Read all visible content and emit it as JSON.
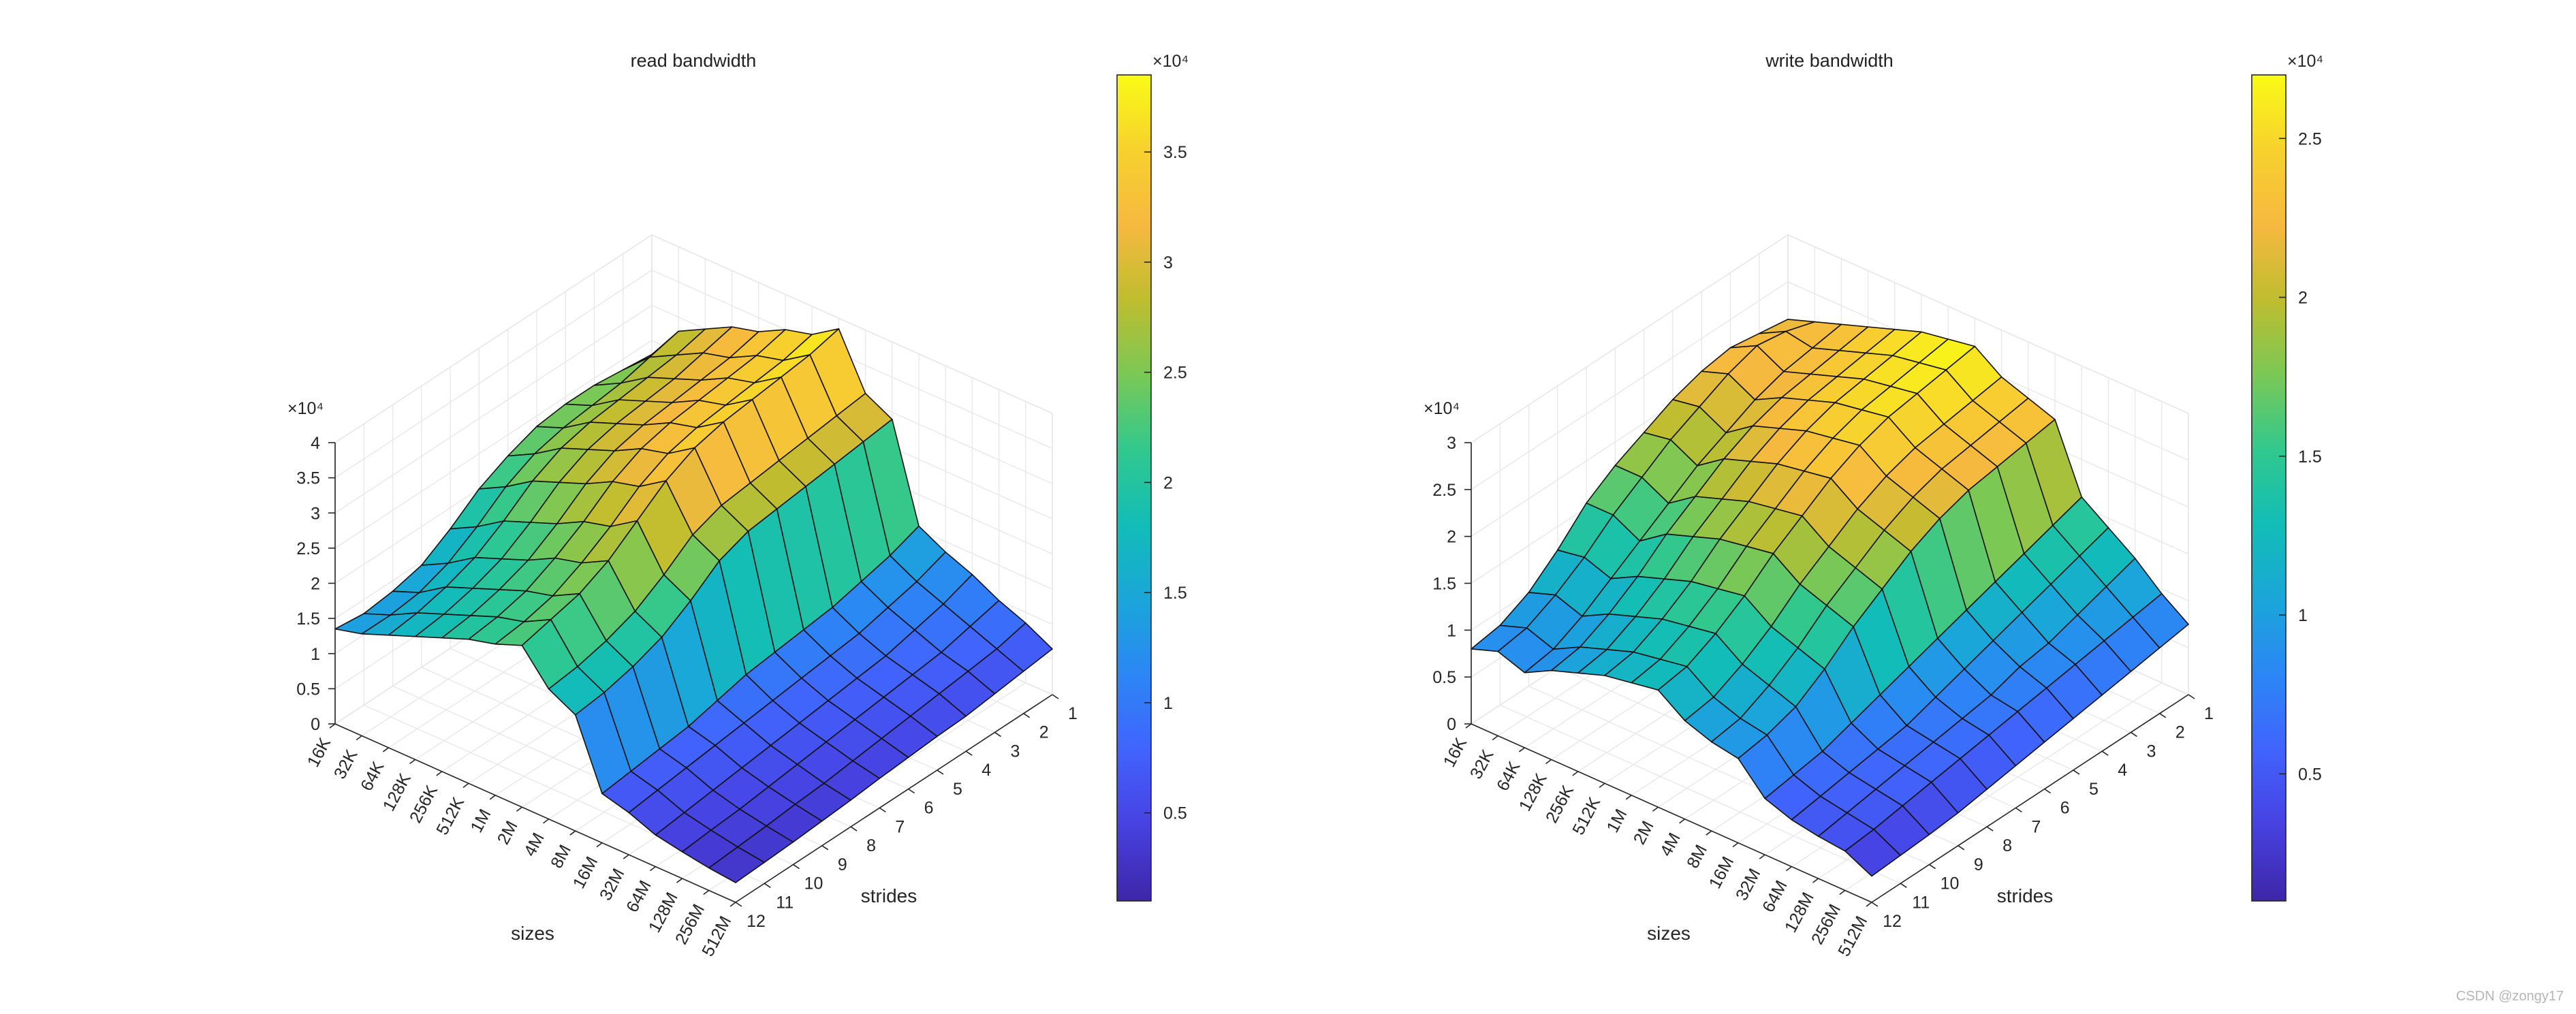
{
  "figure": {
    "watermark": "CSDN @zongy17"
  },
  "colormap": [
    "#3e26a8",
    "#4741e0",
    "#4163fd",
    "#2c86f5",
    "#1aa6d9",
    "#12bdb7",
    "#30c88f",
    "#7ac856",
    "#bfbd2f",
    "#f6b93f",
    "#f7d12e",
    "#f9fb15"
  ],
  "chart_data": [
    {
      "type": "surface",
      "title": "read bandwidth",
      "xlabel": "strides",
      "ylabel": "sizes",
      "zlabel": "",
      "stride_values": [
        1,
        2,
        3,
        4,
        5,
        6,
        7,
        8,
        9,
        10,
        11,
        12
      ],
      "stride_tick_labels": [
        "1",
        "2",
        "3",
        "4",
        "5",
        "6",
        "7",
        "8",
        "9",
        "10",
        "11",
        "12"
      ],
      "size_tick_labels": [
        "16K",
        "32K",
        "64K",
        "128K",
        "256K",
        "512K",
        "1M",
        "2M",
        "4M",
        "8M",
        "16M",
        "32M",
        "64M",
        "128M",
        "256M",
        "512M"
      ],
      "z_exponent_label": "×10⁴",
      "z_tick_values": [
        0,
        5000,
        10000,
        15000,
        20000,
        25000,
        30000,
        35000,
        40000
      ],
      "z_tick_labels": [
        "0",
        "0.5",
        "1",
        "1.5",
        "2",
        "2.5",
        "3",
        "3.5",
        "4"
      ],
      "zlim": [
        0,
        40000
      ],
      "colorbar": {
        "clim": [
          1000,
          38500
        ],
        "ticks": [
          5000,
          10000,
          15000,
          20000,
          25000,
          30000,
          35000
        ],
        "tick_labels": [
          "0.5",
          "1",
          "1.5",
          "2",
          "2.5",
          "3",
          "3.5"
        ],
        "exponent_label": "×10⁴"
      },
      "grid": true,
      "z_rows_by_stride": [
        [
          23000,
          28000,
          30000,
          32000,
          33000,
          35000,
          36000,
          38500,
          31000,
          29000,
          15500,
          13500,
          12000,
          10000,
          8500,
          6500
        ],
        [
          23500,
          27000,
          29000,
          31000,
          32000,
          34000,
          35000,
          37500,
          30500,
          28500,
          14000,
          12000,
          10500,
          9000,
          7500,
          6000
        ],
        [
          24000,
          26000,
          28500,
          30000,
          31500,
          33500,
          34500,
          37000,
          30000,
          28000,
          13000,
          11000,
          9500,
          8000,
          7000,
          5500
        ],
        [
          24000,
          25500,
          28000,
          29500,
          31000,
          33000,
          34000,
          36500,
          29500,
          27500,
          12000,
          10000,
          8500,
          7500,
          6500,
          5000
        ],
        [
          23500,
          25000,
          27500,
          29000,
          30500,
          32500,
          33500,
          36000,
          29000,
          27000,
          11500,
          9500,
          8000,
          7000,
          6000,
          4800
        ],
        [
          22000,
          24000,
          26500,
          28000,
          29500,
          31500,
          32500,
          35000,
          28500,
          26500,
          11000,
          9000,
          7500,
          6500,
          5500,
          4500
        ],
        [
          20000,
          22000,
          24500,
          26000,
          27500,
          29500,
          30500,
          33000,
          27000,
          25000,
          10500,
          8500,
          7000,
          6000,
          5000,
          4200
        ],
        [
          17000,
          19000,
          21500,
          23000,
          24500,
          26500,
          27500,
          30000,
          24000,
          22000,
          9500,
          8000,
          6500,
          5500,
          4500,
          3800
        ],
        [
          14500,
          16500,
          19000,
          20500,
          22000,
          24000,
          25000,
          27000,
          21500,
          19500,
          8500,
          7500,
          6000,
          5000,
          4200,
          3500
        ],
        [
          13500,
          15000,
          17500,
          19000,
          20500,
          22000,
          23000,
          25000,
          20000,
          18000,
          8000,
          7000,
          5500,
          4500,
          3800,
          3200
        ],
        [
          13000,
          14500,
          16500,
          18000,
          19500,
          21000,
          22000,
          24000,
          19000,
          17000,
          7500,
          6500,
          5000,
          4200,
          3500,
          3000
        ],
        [
          13500,
          14500,
          16000,
          17500,
          19000,
          20500,
          21500,
          23000,
          18500,
          16500,
          7000,
          6000,
          4500,
          3800,
          3200,
          2800
        ]
      ]
    },
    {
      "type": "surface",
      "title": "write bandwidth",
      "xlabel": "strides",
      "ylabel": "sizes",
      "zlabel": "",
      "stride_values": [
        1,
        2,
        3,
        4,
        5,
        6,
        7,
        8,
        9,
        10,
        11,
        12
      ],
      "stride_tick_labels": [
        "1",
        "2",
        "3",
        "4",
        "5",
        "6",
        "7",
        "8",
        "9",
        "10",
        "11",
        "12"
      ],
      "size_tick_labels": [
        "16K",
        "32K",
        "64K",
        "128K",
        "256K",
        "512K",
        "1M",
        "2M",
        "4M",
        "8M",
        "16M",
        "32M",
        "64M",
        "128M",
        "256M",
        "512M"
      ],
      "z_exponent_label": "×10⁴",
      "z_tick_values": [
        0,
        5000,
        10000,
        15000,
        20000,
        25000,
        30000
      ],
      "z_tick_labels": [
        "0",
        "0.5",
        "1",
        "1.5",
        "2",
        "2.5",
        "3"
      ],
      "zlim": [
        0,
        30000
      ],
      "colorbar": {
        "clim": [
          1000,
          27000
        ],
        "ticks": [
          5000,
          10000,
          15000,
          20000,
          25000
        ],
        "tick_labels": [
          "0.5",
          "1",
          "1.5",
          "2",
          "2.5"
        ],
        "exponent_label": "×10⁴"
      },
      "grid": true,
      "z_rows_by_stride": [
        [
          21000,
          22000,
          23000,
          24000,
          25000,
          26000,
          26500,
          27000,
          25000,
          24000,
          23000,
          16000,
          14000,
          12000,
          9500,
          7500
        ],
        [
          21500,
          23000,
          22500,
          23500,
          24500,
          25500,
          26000,
          26500,
          24500,
          23500,
          22500,
          15000,
          13000,
          11000,
          9000,
          7000
        ],
        [
          22000,
          23500,
          22000,
          23000,
          24000,
          25000,
          25500,
          26000,
          24000,
          23000,
          22000,
          14000,
          12000,
          10000,
          8500,
          6500
        ],
        [
          21500,
          22500,
          21000,
          22500,
          23500,
          24500,
          25000,
          25500,
          23500,
          22500,
          21500,
          13000,
          11000,
          9000,
          8000,
          6000
        ],
        [
          20500,
          21000,
          19500,
          21500,
          22500,
          23500,
          24000,
          24500,
          22500,
          21500,
          20500,
          12000,
          10000,
          8500,
          7500,
          5500
        ],
        [
          19000,
          19500,
          18000,
          20000,
          21000,
          22000,
          22500,
          23000,
          21000,
          20000,
          19000,
          11000,
          9000,
          7500,
          7000,
          5000
        ],
        [
          17500,
          17500,
          16000,
          18000,
          19000,
          20000,
          20500,
          21000,
          19000,
          18000,
          17000,
          10000,
          8000,
          7000,
          6500,
          4500
        ],
        [
          15500,
          15500,
          14000,
          16000,
          17000,
          18000,
          18500,
          19000,
          17000,
          16000,
          15000,
          9000,
          7000,
          6500,
          6000,
          4000
        ],
        [
          12500,
          13000,
          12000,
          13500,
          14500,
          15500,
          16000,
          16500,
          14500,
          13500,
          12500,
          8000,
          6500,
          6000,
          5500,
          3500
        ],
        [
          10000,
          11000,
          10000,
          11500,
          12500,
          13500,
          14000,
          14500,
          12500,
          11500,
          10500,
          7000,
          6000,
          5500,
          5000,
          3200
        ],
        [
          8500,
          9500,
          8500,
          10000,
          11000,
          12000,
          12500,
          13000,
          11000,
          10000,
          9500,
          6500,
          5500,
          5000,
          4500,
          3000
        ],
        [
          8000,
          9000,
          8000,
          9500,
          10500,
          11500,
          12000,
          12500,
          10500,
          9500,
          9000,
          6000,
          5000,
          4500,
          4200,
          2800
        ]
      ]
    }
  ]
}
